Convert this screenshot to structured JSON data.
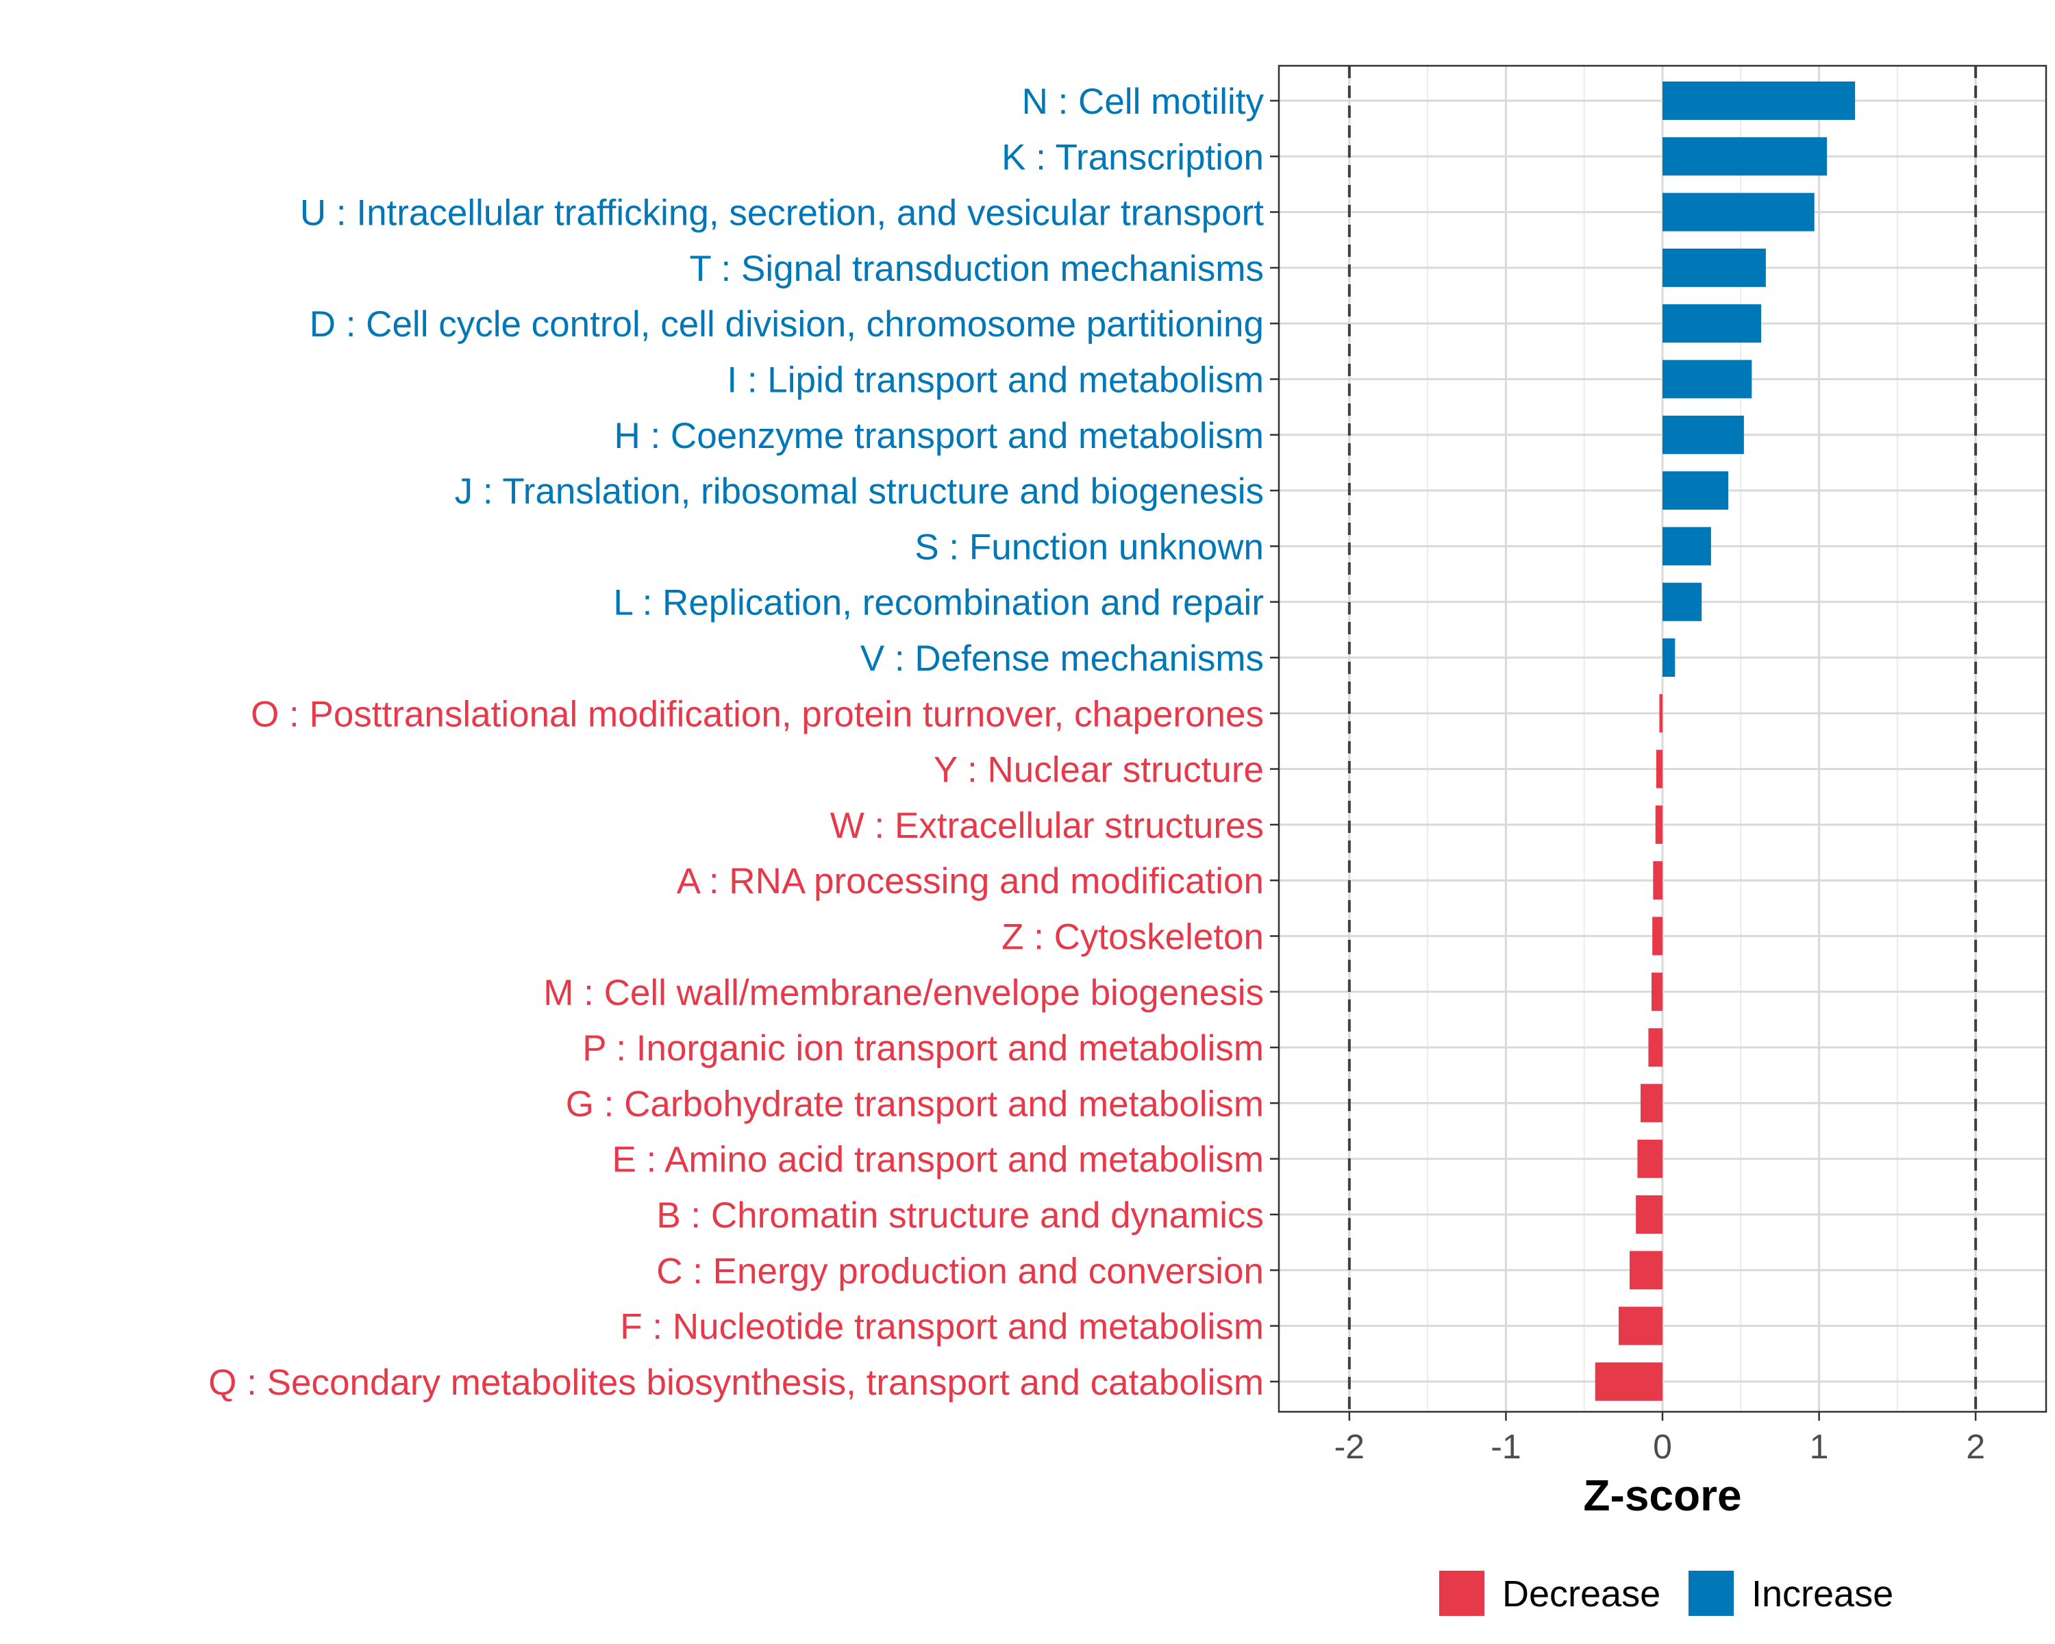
{
  "chart_data": {
    "type": "bar",
    "orientation": "horizontal",
    "xlabel": "Z-score",
    "xlim": [
      -2.45,
      2.45
    ],
    "x_ticks": [
      -2,
      -1,
      0,
      1,
      2
    ],
    "x_tick_labels": [
      "-2",
      "-1",
      "0",
      "1",
      "2"
    ],
    "reference_lines": [
      -2,
      2
    ],
    "grid": true,
    "legend_position": "bottom",
    "colors": {
      "Decrease": "#e63a4b",
      "Increase": "#0077b6"
    },
    "legend": [
      {
        "name": "Decrease",
        "color": "#e63a4b"
      },
      {
        "name": "Increase",
        "color": "#0077b6"
      }
    ],
    "categories": [
      "N : Cell motility",
      "K : Transcription",
      "U : Intracellular trafficking, secretion, and vesicular transport",
      "T : Signal transduction mechanisms",
      "D : Cell cycle control, cell division, chromosome partitioning",
      "I : Lipid transport and metabolism",
      "H : Coenzyme transport and metabolism",
      "J : Translation, ribosomal structure and biogenesis",
      "S : Function unknown",
      "L : Replication, recombination and repair",
      "V : Defense mechanisms",
      "O : Posttranslational modification, protein turnover, chaperones",
      "Y : Nuclear structure",
      "W : Extracellular structures",
      "A : RNA processing and modification",
      "Z : Cytoskeleton",
      "M : Cell wall/membrane/envelope biogenesis",
      "P : Inorganic ion transport and metabolism",
      "G : Carbohydrate transport and metabolism",
      "E : Amino acid transport and metabolism",
      "B : Chromatin structure and dynamics",
      "C : Energy production and conversion",
      "F : Nucleotide transport and metabolism",
      "Q : Secondary metabolites biosynthesis, transport and catabolism"
    ],
    "values": [
      1.23,
      1.05,
      0.97,
      0.66,
      0.63,
      0.57,
      0.52,
      0.42,
      0.31,
      0.25,
      0.08,
      -0.02,
      -0.04,
      -0.045,
      -0.06,
      -0.065,
      -0.07,
      -0.09,
      -0.14,
      -0.16,
      -0.17,
      -0.21,
      -0.28,
      -0.43
    ],
    "groups": [
      "Increase",
      "Increase",
      "Increase",
      "Increase",
      "Increase",
      "Increase",
      "Increase",
      "Increase",
      "Increase",
      "Increase",
      "Increase",
      "Decrease",
      "Decrease",
      "Decrease",
      "Decrease",
      "Decrease",
      "Decrease",
      "Decrease",
      "Decrease",
      "Decrease",
      "Decrease",
      "Decrease",
      "Decrease",
      "Decrease"
    ]
  }
}
